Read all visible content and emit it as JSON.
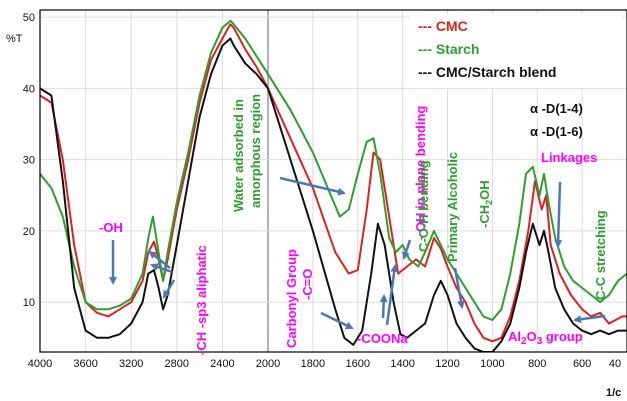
{
  "chart_data": {
    "type": "line",
    "title": "",
    "xlabel": "1/c",
    "ylabel": "%T",
    "xlim": [
      4000,
      400
    ],
    "ylim": [
      3,
      51
    ],
    "x_reversed": true,
    "grid": true,
    "legend_placement": "top-right",
    "x_ticks": [
      "4000",
      "3600",
      "3200",
      "2800",
      "2400",
      "2000",
      "1800",
      "1600",
      "1400",
      "1200",
      "1000",
      "800",
      "600",
      "40"
    ],
    "y_ticks": [
      "10",
      "20",
      "30",
      "40",
      "50"
    ],
    "y_tick_values": [
      10,
      20,
      30,
      40,
      50
    ],
    "series": [
      {
        "name": "CMC",
        "legend_label": "--- CMC",
        "color": "#e02020",
        "points": [
          [
            4000,
            39
          ],
          [
            3900,
            38
          ],
          [
            3800,
            30
          ],
          [
            3700,
            18
          ],
          [
            3600,
            10
          ],
          [
            3500,
            8.5
          ],
          [
            3400,
            8
          ],
          [
            3300,
            9
          ],
          [
            3200,
            10
          ],
          [
            3100,
            13
          ],
          [
            3050,
            17
          ],
          [
            3000,
            18.5
          ],
          [
            2960,
            16
          ],
          [
            2920,
            13
          ],
          [
            2880,
            16
          ],
          [
            2800,
            23
          ],
          [
            2700,
            30
          ],
          [
            2600,
            38
          ],
          [
            2500,
            44
          ],
          [
            2400,
            47
          ],
          [
            2330,
            49
          ],
          [
            2300,
            48.5
          ],
          [
            2200,
            45.5
          ],
          [
            2100,
            43
          ],
          [
            2000,
            40
          ],
          [
            1900,
            33
          ],
          [
            1800,
            26
          ],
          [
            1700,
            17
          ],
          [
            1640,
            14
          ],
          [
            1600,
            14.5
          ],
          [
            1560,
            23
          ],
          [
            1530,
            31
          ],
          [
            1500,
            30
          ],
          [
            1450,
            20
          ],
          [
            1420,
            14
          ],
          [
            1380,
            15
          ],
          [
            1340,
            16
          ],
          [
            1300,
            15
          ],
          [
            1260,
            19
          ],
          [
            1230,
            17.5
          ],
          [
            1200,
            15
          ],
          [
            1160,
            12
          ],
          [
            1120,
            10
          ],
          [
            1080,
            7
          ],
          [
            1040,
            5
          ],
          [
            1000,
            4.5
          ],
          [
            960,
            5
          ],
          [
            920,
            8
          ],
          [
            880,
            13
          ],
          [
            840,
            20
          ],
          [
            810,
            27
          ],
          [
            780,
            23
          ],
          [
            760,
            25
          ],
          [
            740,
            18
          ],
          [
            700,
            14
          ],
          [
            650,
            11
          ],
          [
            600,
            9
          ],
          [
            560,
            8
          ],
          [
            520,
            8.5
          ],
          [
            480,
            7
          ],
          [
            420,
            8
          ],
          [
            400,
            8
          ]
        ]
      },
      {
        "name": "Starch",
        "legend_label": "--- Starch",
        "color": "#2ca02c",
        "points": [
          [
            4000,
            28
          ],
          [
            3900,
            26
          ],
          [
            3800,
            22
          ],
          [
            3700,
            15
          ],
          [
            3600,
            10
          ],
          [
            3500,
            9
          ],
          [
            3400,
            9
          ],
          [
            3300,
            9.5
          ],
          [
            3200,
            10.5
          ],
          [
            3100,
            14
          ],
          [
            3050,
            19
          ],
          [
            3010,
            22
          ],
          [
            2970,
            18
          ],
          [
            2920,
            13
          ],
          [
            2880,
            17
          ],
          [
            2800,
            24
          ],
          [
            2700,
            31
          ],
          [
            2600,
            39
          ],
          [
            2500,
            45
          ],
          [
            2400,
            48.5
          ],
          [
            2330,
            49.5
          ],
          [
            2300,
            49
          ],
          [
            2200,
            47
          ],
          [
            2100,
            44.5
          ],
          [
            2000,
            42
          ],
          [
            1900,
            37
          ],
          [
            1800,
            31
          ],
          [
            1720,
            25
          ],
          [
            1680,
            22
          ],
          [
            1640,
            23
          ],
          [
            1600,
            28
          ],
          [
            1560,
            32.5
          ],
          [
            1530,
            33
          ],
          [
            1500,
            28
          ],
          [
            1460,
            19
          ],
          [
            1430,
            17
          ],
          [
            1400,
            18
          ],
          [
            1370,
            16
          ],
          [
            1330,
            15
          ],
          [
            1300,
            17
          ],
          [
            1260,
            20
          ],
          [
            1230,
            18
          ],
          [
            1200,
            16
          ],
          [
            1160,
            14
          ],
          [
            1120,
            12
          ],
          [
            1080,
            10
          ],
          [
            1040,
            8
          ],
          [
            1000,
            7.5
          ],
          [
            960,
            9
          ],
          [
            920,
            14
          ],
          [
            880,
            21
          ],
          [
            850,
            28
          ],
          [
            820,
            29
          ],
          [
            790,
            25
          ],
          [
            770,
            28
          ],
          [
            750,
            24
          ],
          [
            720,
            19
          ],
          [
            680,
            15
          ],
          [
            640,
            13
          ],
          [
            600,
            12
          ],
          [
            560,
            11
          ],
          [
            520,
            10
          ],
          [
            480,
            11
          ],
          [
            440,
            13
          ],
          [
            400,
            14
          ]
        ]
      },
      {
        "name": "CMC/Starch blend",
        "legend_label": "--- CMC/Starch blend",
        "color": "#111111",
        "points": [
          [
            4000,
            40
          ],
          [
            3900,
            39
          ],
          [
            3800,
            27
          ],
          [
            3700,
            12
          ],
          [
            3600,
            6
          ],
          [
            3500,
            5
          ],
          [
            3400,
            5
          ],
          [
            3300,
            5.5
          ],
          [
            3200,
            7
          ],
          [
            3100,
            10
          ],
          [
            3050,
            14
          ],
          [
            3000,
            14.5
          ],
          [
            2960,
            12
          ],
          [
            2920,
            9
          ],
          [
            2880,
            11
          ],
          [
            2800,
            18
          ],
          [
            2700,
            27
          ],
          [
            2600,
            36
          ],
          [
            2500,
            42
          ],
          [
            2400,
            46
          ],
          [
            2330,
            47
          ],
          [
            2300,
            46
          ],
          [
            2200,
            43.5
          ],
          [
            2100,
            42
          ],
          [
            2000,
            40
          ],
          [
            1900,
            30
          ],
          [
            1800,
            20
          ],
          [
            1700,
            9
          ],
          [
            1660,
            5
          ],
          [
            1620,
            4
          ],
          [
            1580,
            6
          ],
          [
            1540,
            14
          ],
          [
            1510,
            21
          ],
          [
            1480,
            18
          ],
          [
            1440,
            10
          ],
          [
            1410,
            5.5
          ],
          [
            1380,
            5
          ],
          [
            1340,
            6
          ],
          [
            1300,
            7
          ],
          [
            1260,
            11
          ],
          [
            1230,
            13
          ],
          [
            1200,
            11
          ],
          [
            1160,
            7
          ],
          [
            1120,
            5
          ],
          [
            1080,
            3.5
          ],
          [
            1040,
            3
          ],
          [
            1000,
            3
          ],
          [
            960,
            4.5
          ],
          [
            920,
            7
          ],
          [
            880,
            12
          ],
          [
            850,
            17
          ],
          [
            820,
            21
          ],
          [
            790,
            18
          ],
          [
            770,
            20
          ],
          [
            750,
            17
          ],
          [
            720,
            12
          ],
          [
            680,
            9
          ],
          [
            640,
            7
          ],
          [
            600,
            6
          ],
          [
            560,
            5.5
          ],
          [
            520,
            6
          ],
          [
            480,
            5.5
          ],
          [
            440,
            6
          ],
          [
            400,
            6
          ]
        ]
      }
    ],
    "annotations": [
      {
        "id": "oh",
        "text": "-OH",
        "color": "#ff00ff"
      },
      {
        "id": "ch-sp3",
        "text": "-CH -sp3 aliphatic",
        "color": "#ff00ff"
      },
      {
        "id": "water",
        "text": "Water adsorbed in amorphous region",
        "color": "#2ca02c"
      },
      {
        "id": "carbonyl",
        "text": "Carbonyl Group",
        "color": "#ff00ff"
      },
      {
        "id": "c-eq-o",
        "text": "-C=O",
        "color": "#ff00ff"
      },
      {
        "id": "oh-bend",
        "text": "- OH in plane bending",
        "color": "#ff00ff"
      },
      {
        "id": "coh-bend",
        "text": "C-O-H bending",
        "color": "#2ca02c"
      },
      {
        "id": "coona",
        "text": "-COONa",
        "color": "#ff00ff"
      },
      {
        "id": "alcohol",
        "text": "Primary Alcoholic",
        "color": "#2ca02c"
      },
      {
        "id": "ch2oh",
        "text": "-CH2OH",
        "color": "#2ca02c"
      },
      {
        "id": "alpha14",
        "text": "α -D(1-4)",
        "color": "#111111"
      },
      {
        "id": "alpha16",
        "text": "α -D(1-6)",
        "color": "#111111"
      },
      {
        "id": "linkages",
        "text": "Linkages",
        "color": "#ff00ff"
      },
      {
        "id": "cc-stretch",
        "text": "C-C stretching",
        "color": "#2ca02c"
      },
      {
        "id": "al2o3",
        "text": "Al2O3 group",
        "color": "#ff00ff"
      }
    ],
    "arrow_color": "#4a78b5"
  }
}
